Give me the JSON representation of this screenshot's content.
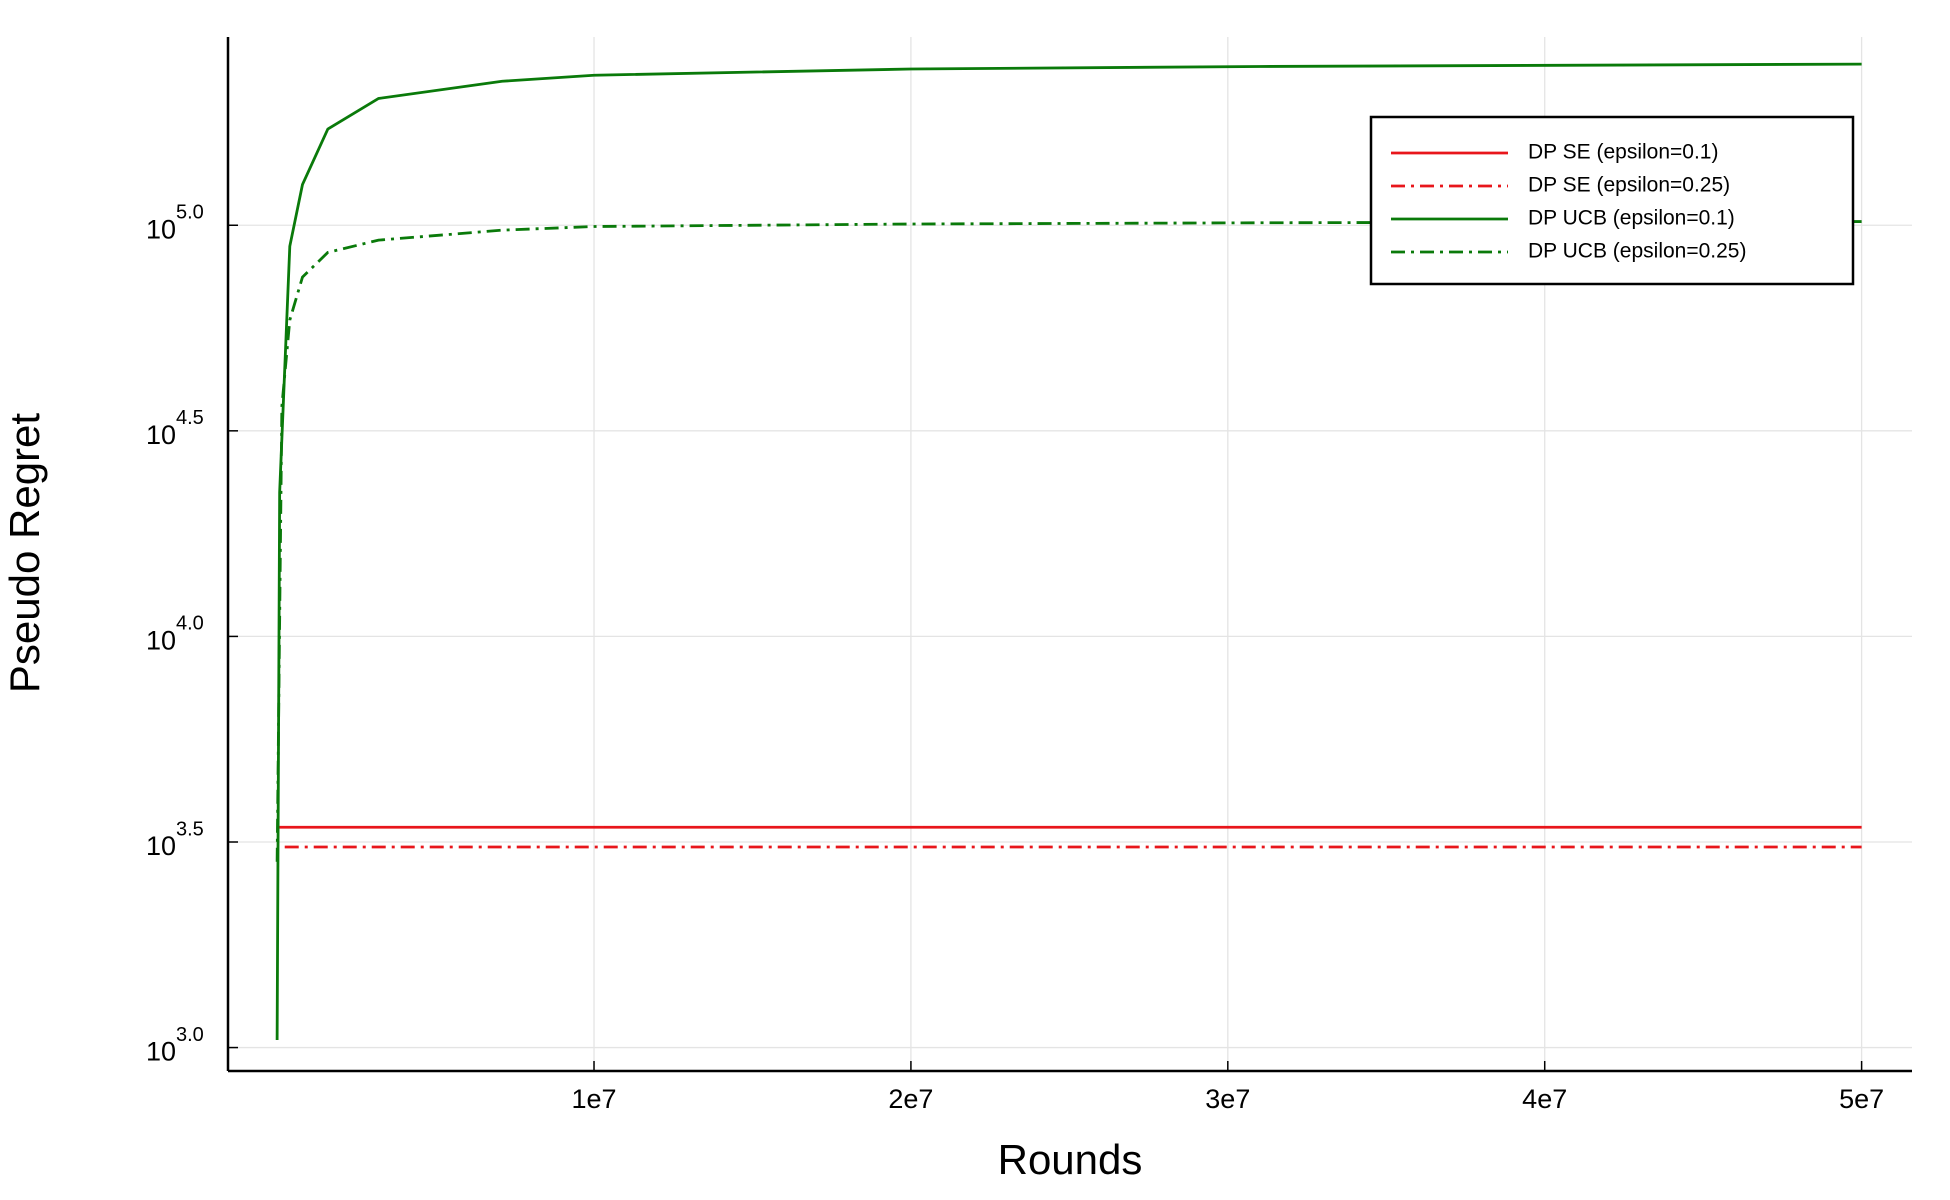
{
  "chart_data": {
    "type": "line",
    "xlabel": "Rounds",
    "ylabel": "Pseudo Regret",
    "ylog": true,
    "grid": true,
    "legend": "upper right",
    "xlim": [
      -1550000,
      51590000
    ],
    "ylim": [
      877,
      287000
    ],
    "xticks": [
      {
        "value": 10000000,
        "label": "1e7"
      },
      {
        "value": 20000000,
        "label": "2e7"
      },
      {
        "value": 30000000,
        "label": "3e7"
      },
      {
        "value": 40000000,
        "label": "4e7"
      },
      {
        "value": 50000000,
        "label": "5e7"
      }
    ],
    "yticks": [
      {
        "value": 1000,
        "label": "10",
        "exponent": "3.0"
      },
      {
        "value": 3162,
        "label": "10",
        "exponent": "3.5"
      },
      {
        "value": 10000,
        "label": "10",
        "exponent": "4.0"
      },
      {
        "value": 31623,
        "label": "10",
        "exponent": "4.5"
      },
      {
        "value": 100000,
        "label": "10",
        "exponent": "5.0"
      }
    ],
    "series": [
      {
        "name": "DP SE (epsilon=0.1)",
        "color": "#e8161b",
        "dash": "solid",
        "x": [
          0,
          50000000
        ],
        "values": [
          3435,
          3435
        ]
      },
      {
        "name": "DP SE (epsilon=0.25)",
        "color": "#e8161b",
        "dash": "dashdot",
        "x": [
          240000,
          50000000
        ],
        "values": [
          3075,
          3075
        ]
      },
      {
        "name": "DP UCB (epsilon=0.1)",
        "color": "#0a7a0a",
        "dash": "solid",
        "x": [
          0,
          80000,
          400000,
          800000,
          1600000,
          3200000,
          7100000,
          10000000,
          20000000,
          31000000,
          50000000
        ],
        "values": [
          1043,
          22400,
          88900,
          125600,
          171400,
          203400,
          224000,
          231700,
          239900,
          243300,
          246600
        ]
      },
      {
        "name": "DP UCB (epsilon=0.25)",
        "color": "#0a7a0a",
        "dash": "dashdot",
        "x": [
          0,
          150000,
          400000,
          800000,
          1600000,
          3200000,
          7100000,
          10000000,
          20000000,
          31000000,
          50000000
        ],
        "values": [
          2830,
          36300,
          58800,
          74800,
          85900,
          92000,
          97300,
          99300,
          100700,
          101400,
          102100
        ]
      }
    ]
  }
}
